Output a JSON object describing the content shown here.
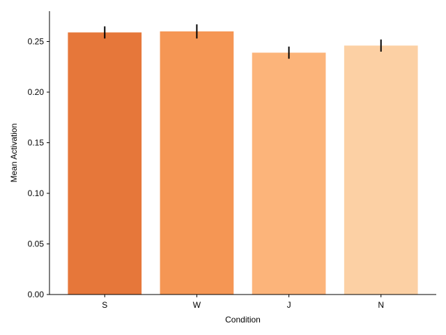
{
  "chart_data": {
    "type": "bar",
    "categories": [
      "S",
      "W",
      "J",
      "N"
    ],
    "values": [
      0.259,
      0.26,
      0.239,
      0.246
    ],
    "errors": [
      0.006,
      0.007,
      0.006,
      0.006
    ],
    "colors": [
      "#e6773a",
      "#f59654",
      "#fcb47a",
      "#fcd0a4"
    ],
    "xlabel": "Condition",
    "ylabel": "Mean Activation",
    "ylim": [
      0,
      0.28
    ],
    "yticks": [
      0.0,
      0.05,
      0.1,
      0.15,
      0.2,
      0.25
    ],
    "ytick_labels": [
      "0.00",
      "0.05",
      "0.10",
      "0.15",
      "0.20",
      "0.25"
    ],
    "grid": false,
    "spines": [
      "left",
      "bottom"
    ]
  }
}
